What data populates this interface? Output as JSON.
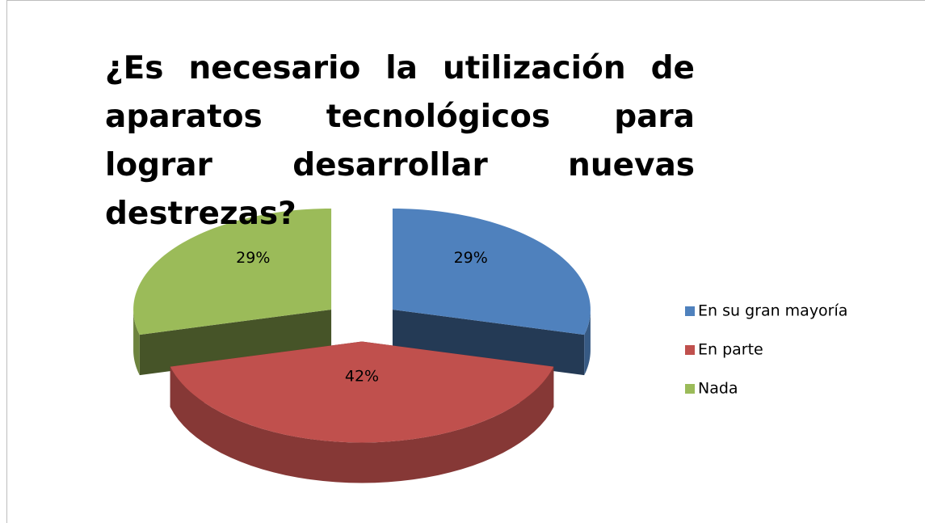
{
  "chart_data": {
    "type": "pie3d",
    "title": "¿Es necesario la utilización de aparatos tecnológicos para lograr desarrollar nuevas destrezas?",
    "categories": [
      "En su gran mayoría",
      "En parte",
      "Nada"
    ],
    "values": [
      29,
      42,
      29
    ],
    "value_labels": [
      "29%",
      "42%",
      "29%"
    ],
    "colors": [
      "#4f81bd",
      "#c0504d",
      "#9bbb59"
    ],
    "legend": "right"
  }
}
